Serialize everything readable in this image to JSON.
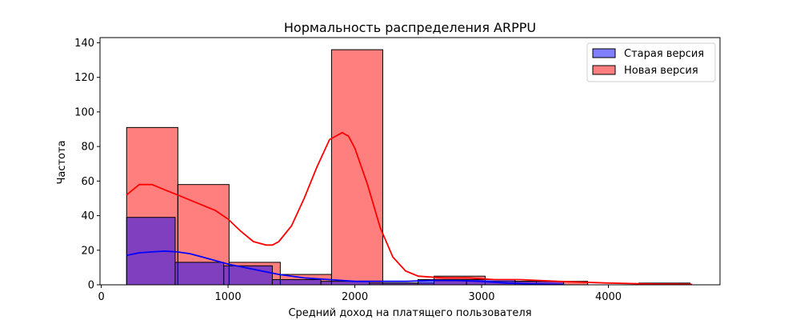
{
  "chart_data": {
    "type": "histogram",
    "title": "Нормальность распределения ARPPU",
    "xlabel": "Средний доход на платящего пользователя",
    "ylabel": "Частота",
    "xlim": [
      -10,
      4880
    ],
    "ylim": [
      0,
      143
    ],
    "x_ticks": [
      0,
      1000,
      2000,
      3000,
      4000
    ],
    "y_ticks": [
      0,
      20,
      40,
      60,
      80,
      100,
      120,
      140
    ],
    "grid": false,
    "legend": {
      "position": "top-right"
    },
    "series": [
      {
        "name": "Новая версия",
        "color": "#ff0000",
        "fill_opacity": 0.5,
        "bins": [
          {
            "x0": 200,
            "x1": 604,
            "count": 91
          },
          {
            "x0": 604,
            "x1": 1008,
            "count": 58
          },
          {
            "x0": 1008,
            "x1": 1412,
            "count": 13
          },
          {
            "x0": 1412,
            "x1": 1816,
            "count": 6
          },
          {
            "x0": 1816,
            "x1": 2220,
            "count": 136
          },
          {
            "x0": 2220,
            "x1": 2624,
            "count": 1
          },
          {
            "x0": 2624,
            "x1": 3028,
            "count": 5
          },
          {
            "x0": 3028,
            "x1": 3432,
            "count": 2
          },
          {
            "x0": 3432,
            "x1": 3836,
            "count": 2
          },
          {
            "x0": 3836,
            "x1": 4240,
            "count": 0
          },
          {
            "x0": 4240,
            "x1": 4644,
            "count": 1
          }
        ],
        "kde": [
          [
            200,
            52
          ],
          [
            300,
            58
          ],
          [
            400,
            58
          ],
          [
            500,
            55
          ],
          [
            600,
            52
          ],
          [
            700,
            49
          ],
          [
            800,
            46
          ],
          [
            900,
            43
          ],
          [
            1000,
            38
          ],
          [
            1100,
            31
          ],
          [
            1200,
            25
          ],
          [
            1300,
            23
          ],
          [
            1350,
            23
          ],
          [
            1400,
            25
          ],
          [
            1500,
            34
          ],
          [
            1600,
            50
          ],
          [
            1700,
            68
          ],
          [
            1800,
            84
          ],
          [
            1900,
            88
          ],
          [
            1950,
            86
          ],
          [
            2000,
            79
          ],
          [
            2100,
            58
          ],
          [
            2200,
            33
          ],
          [
            2300,
            16
          ],
          [
            2400,
            8
          ],
          [
            2500,
            5
          ],
          [
            2700,
            4
          ],
          [
            2900,
            4
          ],
          [
            3100,
            3
          ],
          [
            3300,
            3
          ],
          [
            3600,
            2
          ],
          [
            4000,
            1
          ],
          [
            4300,
            0.5
          ],
          [
            4660,
            0.3
          ]
        ]
      },
      {
        "name": "Старая версия",
        "color": "#0000ff",
        "fill_opacity": 0.5,
        "bins": [
          {
            "x0": 200,
            "x1": 583,
            "count": 39
          },
          {
            "x0": 583,
            "x1": 966,
            "count": 13
          },
          {
            "x0": 966,
            "x1": 1349,
            "count": 11
          },
          {
            "x0": 1349,
            "x1": 1732,
            "count": 3
          },
          {
            "x0": 1732,
            "x1": 2115,
            "count": 2
          },
          {
            "x0": 2115,
            "x1": 2498,
            "count": 1
          },
          {
            "x0": 2498,
            "x1": 2881,
            "count": 3
          },
          {
            "x0": 2881,
            "x1": 3264,
            "count": 3
          },
          {
            "x0": 3264,
            "x1": 3647,
            "count": 2
          }
        ],
        "kde": [
          [
            200,
            17
          ],
          [
            300,
            18.5
          ],
          [
            400,
            19
          ],
          [
            500,
            19.5
          ],
          [
            600,
            19
          ],
          [
            700,
            18
          ],
          [
            800,
            16
          ],
          [
            900,
            14
          ],
          [
            1000,
            12
          ],
          [
            1200,
            9
          ],
          [
            1400,
            6
          ],
          [
            1600,
            4
          ],
          [
            1800,
            3
          ],
          [
            2000,
            2
          ],
          [
            2200,
            2
          ],
          [
            2400,
            2
          ],
          [
            2600,
            2.5
          ],
          [
            2800,
            2.5
          ],
          [
            3000,
            2
          ],
          [
            3200,
            1
          ],
          [
            3400,
            0.5
          ],
          [
            3650,
            0.2
          ]
        ]
      }
    ]
  }
}
